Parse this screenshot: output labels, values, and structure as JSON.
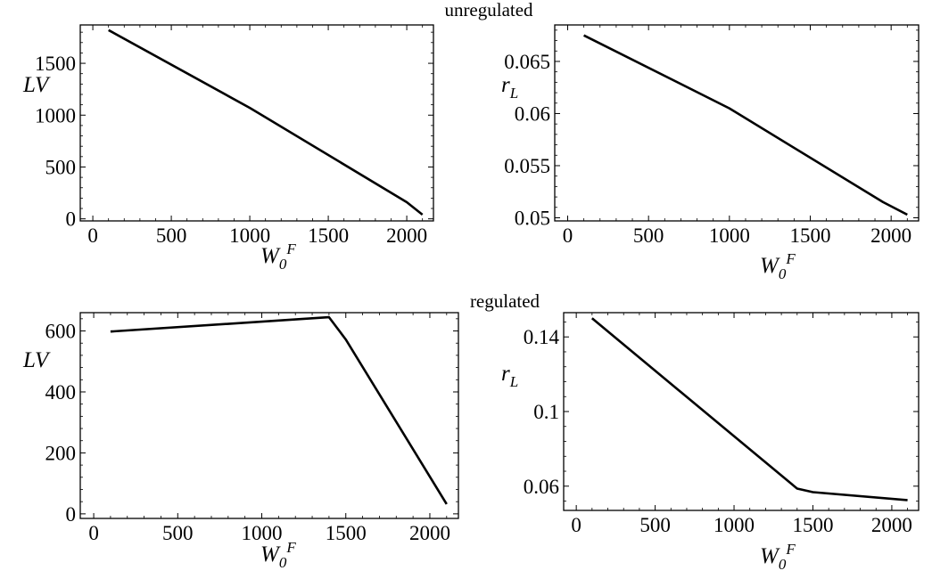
{
  "sections": [
    {
      "title": "unregulated"
    },
    {
      "title": "regulated"
    }
  ],
  "chart_data": [
    {
      "type": "line",
      "section": "unregulated",
      "xlabel": "W0F",
      "ylabel": "LV",
      "xlim": [
        -80,
        2170
      ],
      "ylim": [
        -20,
        1870
      ],
      "xticks": [
        0,
        500,
        1000,
        1500,
        2000
      ],
      "xtick_labels": [
        "0",
        "500",
        "1000",
        "1500",
        "2000"
      ],
      "yticks": [
        0,
        500,
        1000,
        1500
      ],
      "ytick_labels": [
        "0",
        "500",
        "1000",
        "1500"
      ],
      "x": [
        100,
        1000,
        2000,
        2100
      ],
      "y": [
        1820,
        1070,
        160,
        40
      ]
    },
    {
      "type": "line",
      "section": "unregulated",
      "xlabel": "W0F",
      "ylabel": "rL",
      "xlim": [
        -80,
        2170
      ],
      "ylim": [
        0.0497,
        0.0685
      ],
      "xticks": [
        0,
        500,
        1000,
        1500,
        2000
      ],
      "xtick_labels": [
        "0",
        "500",
        "1000",
        "1500",
        "2000"
      ],
      "yticks": [
        0.05,
        0.055,
        0.06,
        0.065
      ],
      "ytick_labels": [
        "0.05",
        "0.055",
        "0.06",
        "0.065"
      ],
      "x": [
        100,
        1000,
        1950,
        2100
      ],
      "y": [
        0.0675,
        0.0605,
        0.0515,
        0.0503
      ]
    },
    {
      "type": "line",
      "section": "regulated",
      "xlabel": "W0F",
      "ylabel": "LV",
      "xlim": [
        -80,
        2170
      ],
      "ylim": [
        -15,
        660
      ],
      "xticks": [
        0,
        500,
        1000,
        1500,
        2000
      ],
      "xtick_labels": [
        "0",
        "500",
        "1000",
        "1500",
        "2000"
      ],
      "yticks": [
        0,
        200,
        400,
        600
      ],
      "ytick_labels": [
        "0",
        "200",
        "400",
        "600"
      ],
      "x": [
        100,
        1400,
        1500,
        2100
      ],
      "y": [
        598,
        645,
        572,
        32
      ]
    },
    {
      "type": "line",
      "section": "regulated",
      "xlabel": "W0F",
      "ylabel": "rL",
      "xlim": [
        -80,
        2170
      ],
      "ylim": [
        0.047,
        0.153
      ],
      "xticks": [
        0,
        500,
        1000,
        1500,
        2000
      ],
      "xtick_labels": [
        "0",
        "500",
        "1000",
        "1500",
        "2000"
      ],
      "yticks": [
        0.06,
        0.1,
        0.14
      ],
      "ytick_labels": [
        "0.06",
        "0.1",
        "0.14"
      ],
      "x": [
        100,
        1400,
        1500,
        2100
      ],
      "y": [
        0.15,
        0.0587,
        0.0568,
        0.0525
      ]
    }
  ]
}
